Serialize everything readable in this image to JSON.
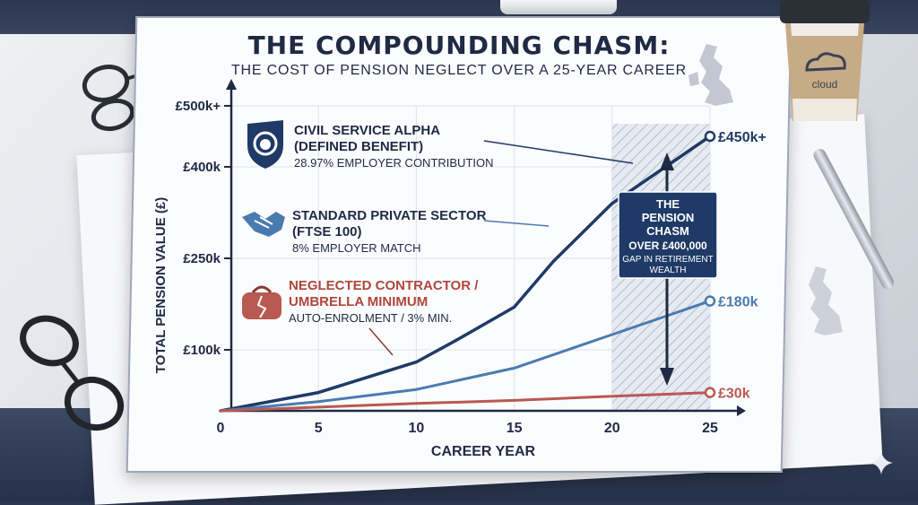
{
  "title": "THE COMPOUNDING CHASM:",
  "subtitle": "THE COST OF PENSION NEGLECT OVER A 25-YEAR CAREER",
  "cup_label": "cloud",
  "colors": {
    "navy": "#1f3a66",
    "steel": "#4a7bb0",
    "red": "#b85a52",
    "callout_bg": "#1f3a66"
  },
  "legend": [
    {
      "icon": "lion-crest-icon",
      "name_line1": "CIVIL SERVICE ALPHA",
      "name_line2": "(DEFINED BENEFIT)",
      "detail": "28.97% EMPLOYER CONTRIBUTION",
      "color": "#1f2a44"
    },
    {
      "icon": "handshake-icon",
      "name_line1": "STANDARD PRIVATE SECTOR",
      "name_line2": "(FTSE 100)",
      "detail": "8% EMPLOYER MATCH",
      "color": "#1f2a44"
    },
    {
      "icon": "broken-purse-icon",
      "name_line1": "NEGLECTED CONTRACTOR /",
      "name_line2": "UMBRELLA MINIMUM",
      "detail": "AUTO-ENROLMENT / 3% MIN.",
      "color": "#b0463c"
    }
  ],
  "callout": {
    "line1": "THE",
    "line2": "PENSION",
    "line3": "CHASM",
    "line4": "OVER £400,000",
    "line5": "GAP IN RETIREMENT",
    "line6": "WEALTH"
  },
  "chart_data": {
    "type": "line",
    "xlabel": "CAREER YEAR",
    "ylabel": "TOTAL PENSION VALUE (£)",
    "xlim": [
      0,
      25
    ],
    "ylim": [
      0,
      500
    ],
    "x_ticks": [
      0,
      5,
      10,
      15,
      20,
      25
    ],
    "y_ticks": [
      {
        "value": 100,
        "label": "£100k"
      },
      {
        "value": 250,
        "label": "£250k"
      },
      {
        "value": 400,
        "label": "£400k"
      },
      {
        "value": 500,
        "label": "£500k+"
      }
    ],
    "highlight_band": [
      20,
      25
    ],
    "series": [
      {
        "key": "civil",
        "color": "#1f3a66",
        "x": [
          0,
          5,
          8,
          10,
          12,
          15,
          17,
          20,
          25
        ],
        "y": [
          0,
          30,
          60,
          80,
          115,
          170,
          245,
          340,
          450
        ],
        "end_label": "£450k+"
      },
      {
        "key": "private",
        "color": "#4a7bb0",
        "x": [
          0,
          5,
          10,
          15,
          20,
          25
        ],
        "y": [
          0,
          15,
          35,
          70,
          125,
          180
        ],
        "end_label": "£180k"
      },
      {
        "key": "contractor",
        "color": "#b85a52",
        "x": [
          0,
          5,
          10,
          15,
          20,
          25
        ],
        "y": [
          0,
          6,
          12,
          17,
          24,
          30
        ],
        "end_label": "£30k"
      }
    ]
  }
}
